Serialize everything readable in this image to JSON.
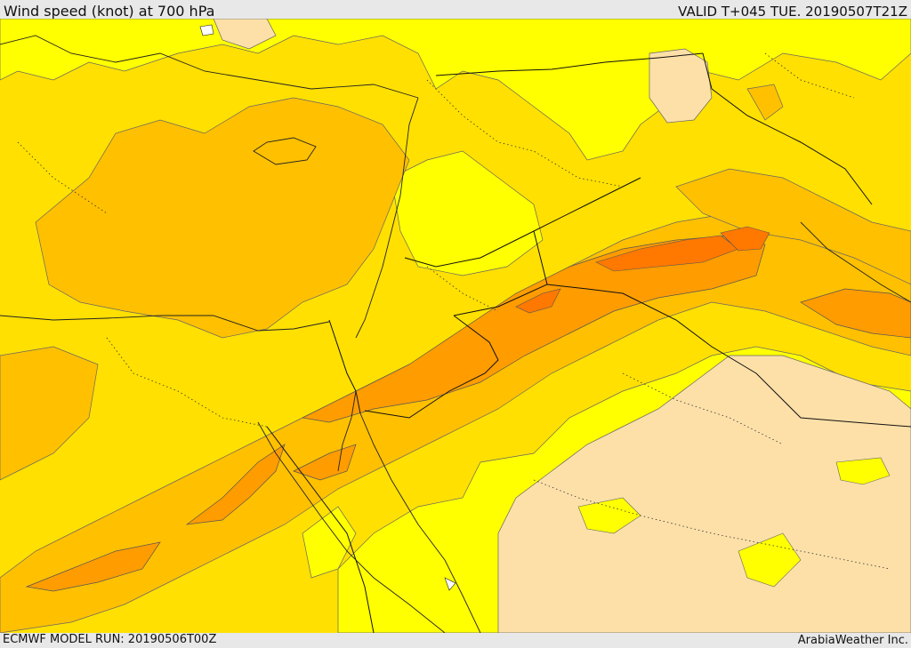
{
  "header": {
    "title": "Wind speed (knot) at 700 hPa",
    "valid": "VALID T+045 TUE. 20190507T21Z"
  },
  "footer": {
    "model_run": "ECMWF MODEL RUN: 20190506T00Z",
    "credit": "ArabiaWeather Inc."
  },
  "colors": {
    "bar_bg": "#e8e8e8",
    "calm_cream": "#fde0a8",
    "band_yellow": "#ffff00",
    "band_gold": "#ffe000",
    "band_amber": "#ffc000",
    "band_orange": "#ff9c00",
    "band_dark_orange": "#ff7800",
    "contour": "#555555",
    "borders": "#000000",
    "water": "#ffffff"
  }
}
